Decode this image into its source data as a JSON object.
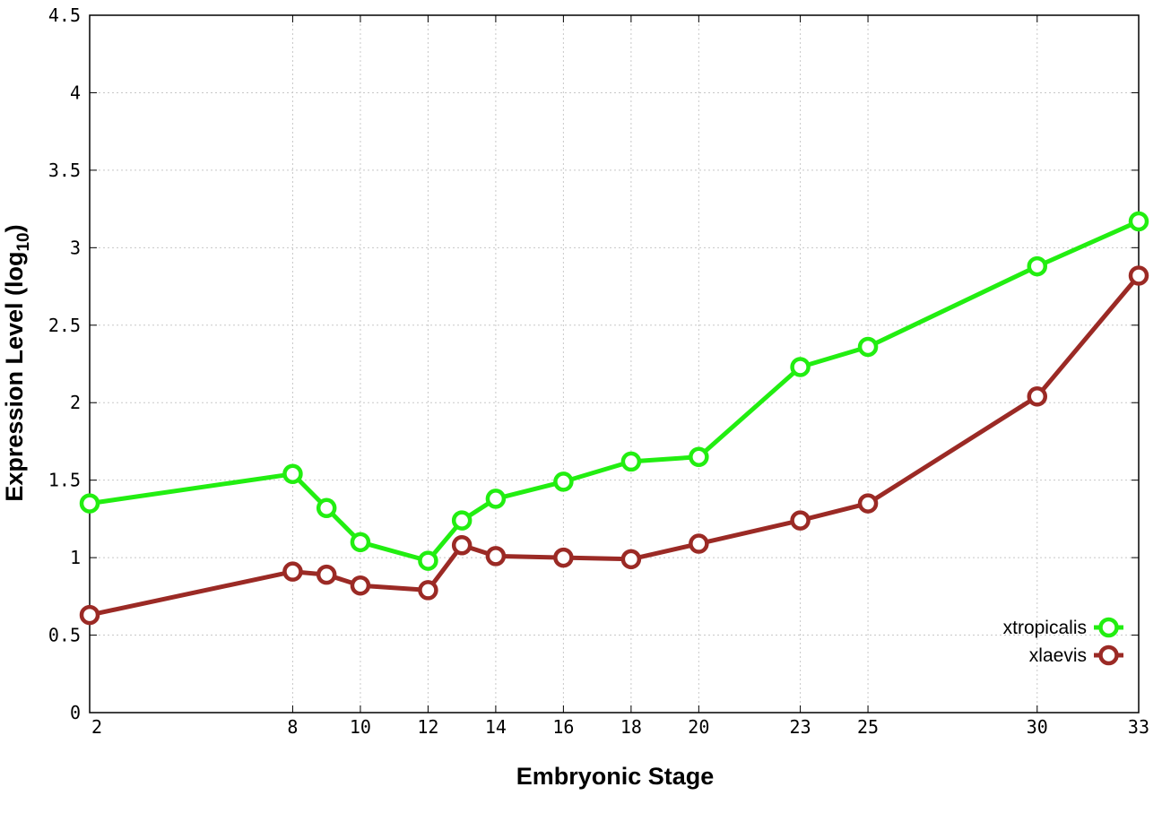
{
  "chart_data": {
    "type": "line",
    "title": "",
    "xlabel": "Embryonic Stage",
    "ylabel_main": "Expression Level (log",
    "ylabel_sub": "10",
    "ylabel_close": ")",
    "x": [
      2,
      8,
      9,
      10,
      12,
      13,
      14,
      16,
      18,
      20,
      23,
      25,
      30,
      33
    ],
    "x_ticks": [
      2,
      8,
      10,
      12,
      14,
      16,
      18,
      20,
      23,
      25,
      30,
      33
    ],
    "x_tick_labels": [
      "2",
      "8",
      "10",
      "12",
      "14",
      "16",
      "18",
      "20",
      "23",
      "25",
      "30",
      "33"
    ],
    "xlim": [
      2,
      33
    ],
    "y_ticks": [
      0,
      0.5,
      1,
      1.5,
      2,
      2.5,
      3,
      3.5,
      4,
      4.5
    ],
    "y_tick_labels": [
      "0",
      "0.5",
      "1",
      "1.5",
      "2",
      "2.5",
      "3",
      "3.5",
      "4",
      "4.5"
    ],
    "ylim": [
      0,
      4.5
    ],
    "grid": true,
    "legend_position": "bottom-right",
    "series": [
      {
        "name": "xtropicalis",
        "color": "#22ee11",
        "values": [
          1.35,
          1.54,
          1.32,
          1.1,
          0.98,
          1.24,
          1.38,
          1.49,
          1.62,
          1.65,
          2.23,
          2.36,
          2.88,
          3.17
        ]
      },
      {
        "name": "xlaevis",
        "color": "#9b2a25",
        "values": [
          0.63,
          0.91,
          0.89,
          0.82,
          0.79,
          1.08,
          1.01,
          1.0,
          0.99,
          1.09,
          1.24,
          1.35,
          2.04,
          2.82
        ]
      }
    ]
  }
}
